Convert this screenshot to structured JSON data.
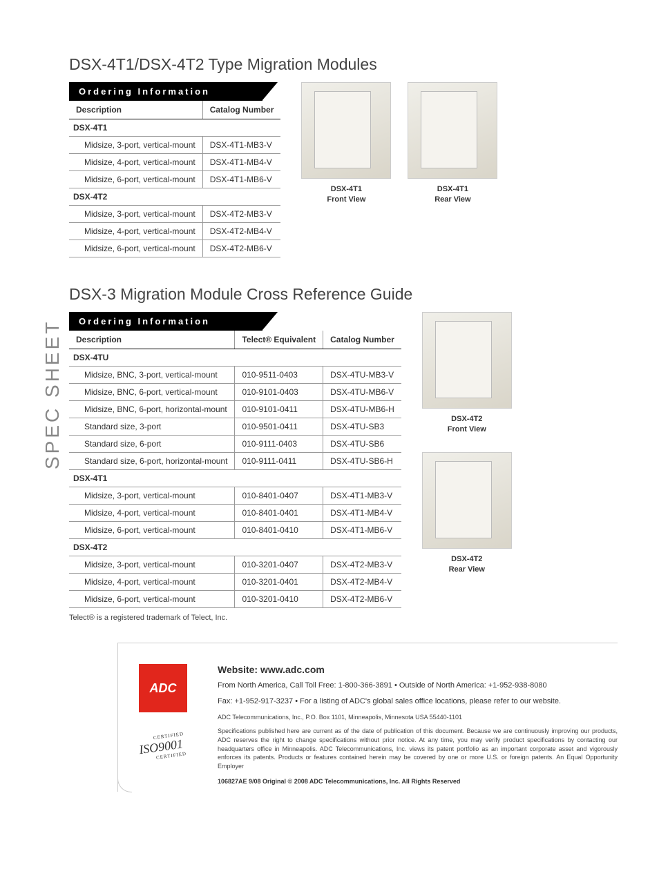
{
  "spec_label": "SPEC SHEET",
  "section1": {
    "title": "DSX-4T1/DSX-4T2 Type Migration Modules",
    "banner": "Ordering Information",
    "headers": [
      "Description",
      "Catalog Number"
    ],
    "groups": [
      {
        "name": "DSX-4T1",
        "rows": [
          [
            "Midsize, 3-port, vertical-mount",
            "DSX-4T1-MB3-V"
          ],
          [
            "Midsize, 4-port, vertical-mount",
            "DSX-4T1-MB4-V"
          ],
          [
            "Midsize, 6-port, vertical-mount",
            "DSX-4T1-MB6-V"
          ]
        ]
      },
      {
        "name": "DSX-4T2",
        "rows": [
          [
            "Midsize, 3-port, vertical-mount",
            "DSX-4T2-MB3-V"
          ],
          [
            "Midsize, 4-port, vertical-mount",
            "DSX-4T2-MB4-V"
          ],
          [
            "Midsize, 6-port, vertical-mount",
            "DSX-4T2-MB6-V"
          ]
        ]
      }
    ],
    "images": [
      {
        "caption_l1": "DSX-4T1",
        "caption_l2": "Front View"
      },
      {
        "caption_l1": "DSX-4T1",
        "caption_l2": "Rear View"
      }
    ]
  },
  "section2": {
    "title": "DSX-3 Migration Module Cross Reference Guide",
    "banner": "Ordering Information",
    "headers": [
      "Description",
      "Telect® Equivalent",
      "Catalog Number"
    ],
    "groups": [
      {
        "name": "DSX-4TU",
        "rows": [
          [
            "Midsize, BNC, 3-port, vertical-mount",
            "010-9511-0403",
            "DSX-4TU-MB3-V"
          ],
          [
            "Midsize, BNC, 6-port, vertical-mount",
            "010-9101-0403",
            "DSX-4TU-MB6-V"
          ],
          [
            "Midsize, BNC, 6-port, horizontal-mount",
            "010-9101-0411",
            "DSX-4TU-MB6-H"
          ],
          [
            "Standard size, 3-port",
            "010-9501-0411",
            "DSX-4TU-SB3"
          ],
          [
            "Standard size, 6-port",
            "010-9111-0403",
            "DSX-4TU-SB6"
          ],
          [
            "Standard size, 6-port, horizontal-mount",
            "010-9111-0411",
            "DSX-4TU-SB6-H"
          ]
        ]
      },
      {
        "name": "DSX-4T1",
        "rows": [
          [
            "Midsize, 3-port, vertical-mount",
            "010-8401-0407",
            "DSX-4T1-MB3-V"
          ],
          [
            "Midsize, 4-port, vertical-mount",
            "010-8401-0401",
            "DSX-4T1-MB4-V"
          ],
          [
            "Midsize, 6-port, vertical-mount",
            "010-8401-0410",
            "DSX-4T1-MB6-V"
          ]
        ]
      },
      {
        "name": "DSX-4T2",
        "rows": [
          [
            "Midsize, 3-port, vertical-mount",
            "010-3201-0407",
            "DSX-4T2-MB3-V"
          ],
          [
            "Midsize, 4-port, vertical-mount",
            "010-3201-0401",
            "DSX-4T2-MB4-V"
          ],
          [
            "Midsize, 6-port, vertical-mount",
            "010-3201-0410",
            "DSX-4T2-MB6-V"
          ]
        ]
      }
    ],
    "images": [
      {
        "caption_l1": "DSX-4T2",
        "caption_l2": "Front View"
      },
      {
        "caption_l1": "DSX-4T2",
        "caption_l2": "Rear View"
      }
    ],
    "footnote": "Telect® is a registered trademark of Telect, Inc."
  },
  "footer": {
    "logo_text": "ADC",
    "iso_top": "CERTIFIED",
    "iso_main": "ISO9001",
    "iso_bot": "CERTIFIED",
    "website_label": "Website:  www.adc.com",
    "line1": "From North America, Call Toll Free: 1-800-366-3891 • Outside of North America: +1-952-938-8080",
    "line2": "Fax: +1-952-917-3237 • For a listing of ADC's global sales office locations, please refer to our website.",
    "address": "ADC Telecommunications, Inc., P.O. Box 1101, Minneapolis, Minnesota  USA  55440-1101",
    "legal": "Specifications published here are current as of the date of publication of this document. Because we are continuously improving our products, ADC reserves the right to change specifications without prior notice. At any time, you may verify product specifications by contacting our headquarters office in Minneapolis. ADC Telecommunications, Inc. views its patent portfolio as an important corporate asset and vigorously enforces its patents. Products or features contained herein may be covered by one or more U.S. or foreign patents. An Equal Opportunity Employer",
    "copyright": "106827AE   9/08   Original   ©   2008 ADC Telecommunications, Inc.   All Rights Reserved"
  }
}
